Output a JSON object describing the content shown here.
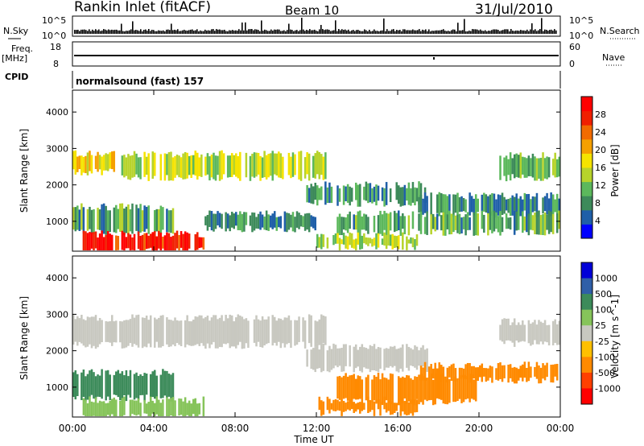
{
  "header": {
    "title": "Rankin Inlet (fitACF)",
    "beam": "Beam 10",
    "date": "31/Jul/2010"
  },
  "noise_panel": {
    "left_label": "N.Sky",
    "left_ticks": [
      "10^5",
      "10^0"
    ],
    "right_ticks": [
      "10^5",
      "10^0"
    ],
    "right_label": "N.Search"
  },
  "freq_panel": {
    "left_label": "Freq.",
    "left_unit": "[MHz]",
    "left_ticks": [
      "18",
      "8"
    ],
    "right_ticks": [
      "60",
      "0"
    ],
    "right_label": "Nave"
  },
  "cpid_panel": {
    "label": "CPID",
    "text": "normalsound (fast) 157"
  },
  "colors": {
    "power_scale": [
      "#0000ff",
      "#1f5fa8",
      "#3d8a5a",
      "#5cb85c",
      "#b7d32b",
      "#f5e300",
      "#f5a000",
      "#f26b00",
      "#f02000",
      "#ff0000"
    ],
    "velocity_scale": [
      "#0000d8",
      "#2f5fa8",
      "#3c8b5a",
      "#86c45a",
      "#c8c8c0",
      "#ffc000",
      "#ff8a00",
      "#ff4000",
      "#ff0000"
    ]
  },
  "chart_data": [
    {
      "type": "heatmap",
      "title": "Power",
      "xlabel": "Time UT",
      "ylabel": "Slant Range [km]",
      "x_ticks": [
        "00:00",
        "04:00",
        "08:00",
        "12:00",
        "16:00",
        "20:00",
        "00:00"
      ],
      "xlim": [
        0,
        24
      ],
      "ylim": [
        180,
        4600
      ],
      "y_ticks": [
        1000,
        2000,
        3000,
        4000
      ],
      "colorbar": {
        "label": "Power [dB]",
        "ticks": [
          "4",
          "8",
          "12",
          "16",
          "20",
          "24",
          "28"
        ],
        "range": [
          0,
          30
        ]
      },
      "regions": [
        {
          "t": [
            0,
            2.2
          ],
          "r": [
            2350,
            2850
          ],
          "v": 17
        },
        {
          "t": [
            2.2,
            12.5
          ],
          "r": [
            2200,
            2850
          ],
          "v": 14
        },
        {
          "t": [
            11.5,
            17.5
          ],
          "r": [
            1500,
            2000
          ],
          "v": 8
        },
        {
          "t": [
            17,
            24
          ],
          "r": [
            1200,
            1700
          ],
          "v": 7
        },
        {
          "t": [
            0,
            5
          ],
          "r": [
            700,
            1400
          ],
          "v": 9
        },
        {
          "t": [
            6.5,
            12
          ],
          "r": [
            800,
            1200
          ],
          "v": 7
        },
        {
          "t": [
            13,
            24
          ],
          "r": [
            700,
            1200
          ],
          "v": 9
        },
        {
          "t": [
            0.5,
            6.5
          ],
          "r": [
            180,
            650
          ],
          "v": 26
        },
        {
          "t": [
            12,
            17
          ],
          "r": [
            300,
            600
          ],
          "v": 13
        },
        {
          "t": [
            21,
            24
          ],
          "r": [
            2200,
            2800
          ],
          "v": 10
        }
      ]
    },
    {
      "type": "heatmap",
      "title": "Velocity",
      "xlabel": "Time UT",
      "ylabel": "Slant Range [km]",
      "x_ticks": [
        "00:00",
        "04:00",
        "08:00",
        "12:00",
        "16:00",
        "20:00",
        "00:00"
      ],
      "xlim": [
        0,
        24
      ],
      "ylim": [
        180,
        4600
      ],
      "y_ticks": [
        1000,
        2000,
        3000,
        4000
      ],
      "colorbar": {
        "label": "Velocity [m s^-1]",
        "ticks": [
          "1000",
          "500",
          "100",
          "25",
          "-25",
          "-100",
          "-500",
          "-1000"
        ],
        "range": [
          -1000,
          1000
        ]
      },
      "regions": [
        {
          "t": [
            0,
            12.5
          ],
          "r": [
            2150,
            2900
          ],
          "v": 0
        },
        {
          "t": [
            11.5,
            17.5
          ],
          "r": [
            1500,
            2100
          ],
          "v": 0
        },
        {
          "t": [
            17,
            24
          ],
          "r": [
            1200,
            1600
          ],
          "v": -150
        },
        {
          "t": [
            0,
            5
          ],
          "r": [
            700,
            1400
          ],
          "v": 120
        },
        {
          "t": [
            13,
            20
          ],
          "r": [
            600,
            1300
          ],
          "v": -300
        },
        {
          "t": [
            0.5,
            6.5
          ],
          "r": [
            180,
            650
          ],
          "v": 60
        },
        {
          "t": [
            12,
            17
          ],
          "r": [
            300,
            650
          ],
          "v": -120
        },
        {
          "t": [
            21,
            24
          ],
          "r": [
            2200,
            2800
          ],
          "v": 0
        }
      ]
    }
  ]
}
